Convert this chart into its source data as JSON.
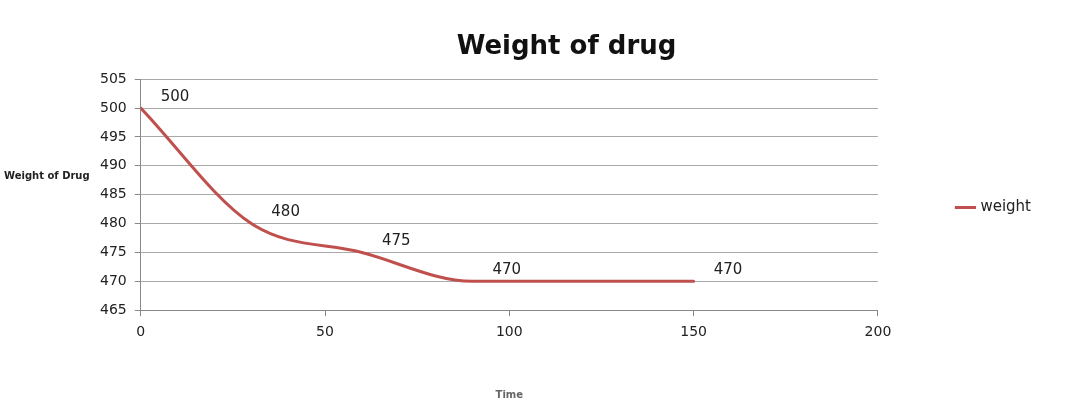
{
  "chart_data": {
    "type": "line",
    "title": "Weight of drug",
    "xlabel": "Time",
    "ylabel": "Weight of Drug",
    "x": [
      0,
      30,
      60,
      90,
      150
    ],
    "series": [
      {
        "name": "weight",
        "color": "#c0504d",
        "values": [
          500,
          480,
          475,
          470,
          470
        ]
      }
    ],
    "xlim": [
      0,
      200
    ],
    "xticks": [
      0,
      50,
      100,
      150,
      200
    ],
    "ylim": [
      465,
      505
    ],
    "yticks": [
      465,
      470,
      475,
      480,
      485,
      490,
      495,
      500,
      505
    ],
    "grid": "y",
    "legend": "right",
    "marker": "none",
    "line_style": "solid",
    "data_labels": true
  }
}
